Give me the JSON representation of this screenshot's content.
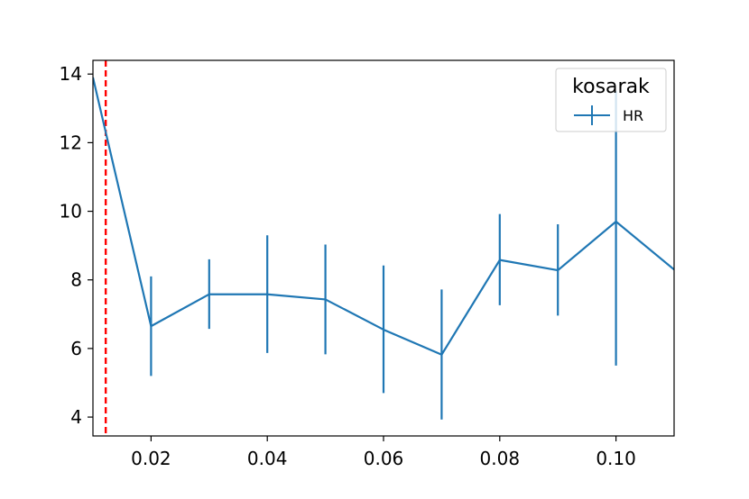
{
  "chart_data": {
    "type": "line",
    "x": [
      0.01,
      0.02,
      0.03,
      0.04,
      0.05,
      0.06,
      0.07,
      0.08,
      0.09,
      0.1,
      0.11
    ],
    "series": [
      {
        "name": "HR",
        "values": [
          13.9,
          6.65,
          7.58,
          7.58,
          7.43,
          6.55,
          5.82,
          8.58,
          8.28,
          9.7,
          8.3
        ],
        "err_low": [
          null,
          5.2,
          6.57,
          5.87,
          5.83,
          4.7,
          3.93,
          7.26,
          6.96,
          5.5,
          null
        ],
        "err_high": [
          null,
          8.1,
          8.6,
          9.3,
          9.03,
          8.42,
          7.72,
          9.92,
          9.62,
          13.5,
          null
        ],
        "color": "#1f77b4"
      }
    ],
    "xlim": [
      0.01,
      0.11
    ],
    "ylim": [
      3.45,
      14.4
    ],
    "xticks": [
      "0.02",
      "0.04",
      "0.06",
      "0.08",
      "0.10"
    ],
    "xtick_values": [
      0.02,
      0.04,
      0.06,
      0.08,
      0.1
    ],
    "yticks": [
      "4",
      "6",
      "8",
      "10",
      "12",
      "14"
    ],
    "ytick_values": [
      4,
      6,
      8,
      10,
      12,
      14
    ],
    "vline": {
      "x": 0.0122,
      "color": "#ff0000",
      "style": "dashed"
    },
    "legend": {
      "title": "kosarak",
      "position": "top-right",
      "entries": [
        "HR"
      ]
    },
    "grid": false
  }
}
